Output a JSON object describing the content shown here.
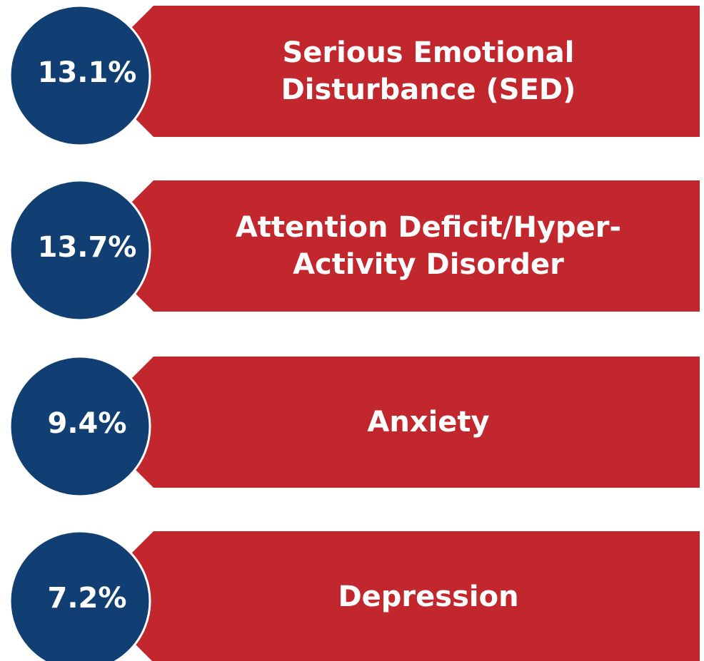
{
  "items": [
    {
      "value": "13.1%",
      "lines": [
        "Serious Emotional",
        "Disturbance (SED)"
      ]
    },
    {
      "value": "13.7%",
      "lines": [
        "Attention Deficit/Hyper-",
        "Activity Disorder"
      ]
    },
    {
      "value": "9.4%",
      "lines": [
        "Anxiety"
      ]
    },
    {
      "value": "7.2%",
      "lines": [
        "Depression"
      ]
    }
  ]
}
